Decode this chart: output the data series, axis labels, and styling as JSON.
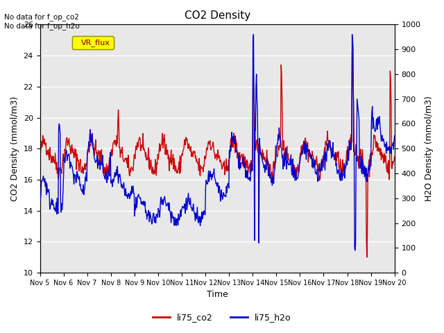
{
  "title": "CO2 Density",
  "xlabel": "Time",
  "ylabel_left": "CO2 Density (mmol/m3)",
  "ylabel_right": "H2O Density (mmol/m3)",
  "text_no_data": "No data for f_op_co2\nNo data for f_op_h2o",
  "legend_label": "VR_flux",
  "legend_entries": [
    "li75_co2",
    "li75_h2o"
  ],
  "co2_color": "#cc0000",
  "h2o_color": "#0000cc",
  "ylim_left": [
    10,
    26
  ],
  "ylim_right": [
    0,
    1000
  ],
  "x_ticks": [
    "Nov 5",
    "Nov 6",
    "Nov 7",
    "Nov 8",
    "Nov 9",
    "Nov 10",
    "Nov 11",
    "Nov 12",
    "Nov 13",
    "Nov 14",
    "Nov 15",
    "Nov 16",
    "Nov 17",
    "Nov 18",
    "Nov 19",
    "Nov 20"
  ],
  "background_color": "#e8e8e8",
  "grid_color": "#ffffff"
}
